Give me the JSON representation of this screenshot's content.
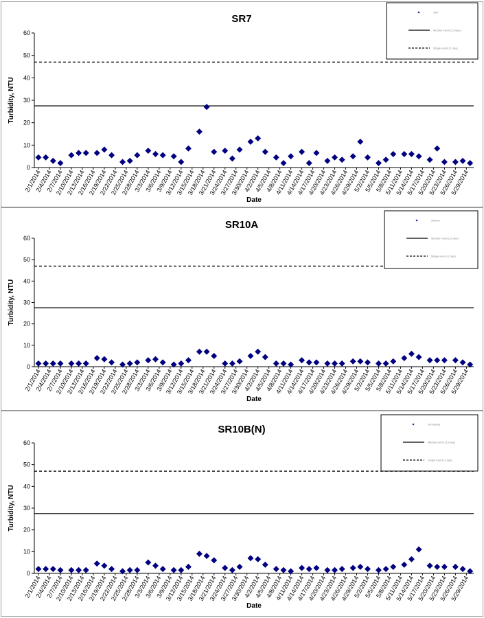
{
  "chart_data": [
    {
      "type": "scatter",
      "title": "SR7",
      "xlabel": "Date",
      "ylabel": "Turbidity, NTU",
      "ylim": [
        0,
        60
      ],
      "y_ticks": [
        0,
        10,
        20,
        30,
        40,
        50,
        60
      ],
      "x_tick_labels": [
        "2/1/2014",
        "2/4/2014",
        "2/7/2014",
        "2/10/2014",
        "2/13/2014",
        "2/16/2014",
        "2/19/2014",
        "2/22/2014",
        "2/25/2014",
        "2/28/2014",
        "3/3/2014",
        "3/6/2014",
        "3/9/2014",
        "3/12/2014",
        "3/15/2014",
        "3/18/2014",
        "3/21/2014",
        "3/24/2014",
        "3/27/2014",
        "3/30/2014",
        "4/2/2014",
        "4/5/2014",
        "4/8/2014",
        "4/11/2014",
        "4/14/2014",
        "4/17/2014",
        "4/20/2014",
        "4/23/2014",
        "4/26/2014",
        "4/29/2014",
        "5/2/2014",
        "5/5/2014",
        "5/8/2014",
        "5/11/2014",
        "5/14/2014",
        "5/17/2014",
        "5/20/2014",
        "5/23/2014",
        "5/26/2014",
        "5/29/2014"
      ],
      "legend_position": "top-right",
      "legend": [
        "SR7",
        "Median event (15 day)",
        "Single event (1 day)"
      ],
      "series": [
        {
          "name": "SR7",
          "marker": "diamond",
          "color": "#000080",
          "x": [
            "2/1/2014",
            "2/3/2014",
            "2/5/2014",
            "2/7/2014",
            "2/10/2014",
            "2/12/2014",
            "2/14/2014",
            "2/17/2014",
            "2/19/2014",
            "2/21/2014",
            "2/24/2014",
            "2/26/2014",
            "2/28/2014",
            "3/3/2014",
            "3/5/2014",
            "3/7/2014",
            "3/10/2014",
            "3/12/2014",
            "3/14/2014",
            "3/17/2014",
            "3/19/2014",
            "3/21/2014",
            "3/24/2014",
            "3/26/2014",
            "3/28/2014",
            "3/31/2014",
            "4/2/2014",
            "4/4/2014",
            "4/7/2014",
            "4/9/2014",
            "4/11/2014",
            "4/14/2014",
            "4/16/2014",
            "4/18/2014",
            "4/21/2014",
            "4/23/2014",
            "4/25/2014",
            "4/28/2014",
            "4/30/2014",
            "5/2/2014",
            "5/5/2014",
            "5/7/2014",
            "5/9/2014",
            "5/12/2014",
            "5/14/2014",
            "5/16/2014",
            "5/19/2014",
            "5/21/2014",
            "5/23/2014",
            "5/26/2014",
            "5/28/2014",
            "5/30/2014"
          ],
          "y": [
            4.5,
            4.5,
            3,
            2,
            5.5,
            6.5,
            6.5,
            6.5,
            8,
            5.5,
            2.5,
            3,
            5.5,
            7.5,
            6,
            5.5,
            5,
            2.5,
            8.5,
            16,
            27,
            7,
            7.5,
            4,
            8,
            11.5,
            13,
            7,
            4.5,
            2,
            5,
            7,
            2,
            6.5,
            3,
            4.5,
            3.5,
            5,
            11.5,
            4.5,
            2,
            3.5,
            6,
            6,
            6,
            5,
            3.5,
            8.5,
            2.5,
            2.5,
            3,
            2
          ]
        }
      ],
      "reference_lines": [
        {
          "name": "Median event (15 day)",
          "y": 27.5,
          "style": "solid"
        },
        {
          "name": "Single event (1 day)",
          "y": 47,
          "style": "dashed"
        }
      ]
    },
    {
      "type": "scatter",
      "title": "SR10A",
      "xlabel": "Date",
      "ylabel": "Turbidity, NTU",
      "ylim": [
        0,
        60
      ],
      "y_ticks": [
        0,
        10,
        20,
        30,
        40,
        50,
        60
      ],
      "x_tick_labels": [
        "2/1/2014",
        "2/4/2014",
        "2/7/2014",
        "2/10/2014",
        "2/13/2014",
        "2/16/2014",
        "2/19/2014",
        "2/22/2014",
        "2/25/2014",
        "2/28/2014",
        "3/3/2014",
        "3/6/2014",
        "3/9/2014",
        "3/12/2014",
        "3/15/2014",
        "3/18/2014",
        "3/21/2014",
        "3/24/2014",
        "3/27/2014",
        "3/30/2014",
        "4/2/2014",
        "4/5/2014",
        "4/8/2014",
        "4/11/2014",
        "4/14/2014",
        "4/17/2014",
        "4/20/2014",
        "4/23/2014",
        "4/26/2014",
        "4/29/2014",
        "5/2/2014",
        "5/5/2014",
        "5/8/2014",
        "5/11/2014",
        "5/14/2014",
        "5/17/2014",
        "5/20/2014",
        "5/23/2014",
        "5/26/2014",
        "5/29/2014"
      ],
      "legend_position": "top-right",
      "legend": [
        "SR10A",
        "Median event (15 day)",
        "Single event (1 day)"
      ],
      "series": [
        {
          "name": "SR10A",
          "marker": "diamond",
          "color": "#000080",
          "x": [
            "2/1/2014",
            "2/3/2014",
            "2/5/2014",
            "2/7/2014",
            "2/10/2014",
            "2/12/2014",
            "2/14/2014",
            "2/17/2014",
            "2/19/2014",
            "2/21/2014",
            "2/24/2014",
            "2/26/2014",
            "2/28/2014",
            "3/3/2014",
            "3/5/2014",
            "3/7/2014",
            "3/10/2014",
            "3/12/2014",
            "3/14/2014",
            "3/17/2014",
            "3/19/2014",
            "3/21/2014",
            "3/24/2014",
            "3/26/2014",
            "3/28/2014",
            "3/31/2014",
            "4/2/2014",
            "4/4/2014",
            "4/7/2014",
            "4/9/2014",
            "4/11/2014",
            "4/14/2014",
            "4/16/2014",
            "4/18/2014",
            "4/21/2014",
            "4/23/2014",
            "4/25/2014",
            "4/28/2014",
            "4/30/2014",
            "5/2/2014",
            "5/5/2014",
            "5/7/2014",
            "5/9/2014",
            "5/12/2014",
            "5/14/2014",
            "5/16/2014",
            "5/19/2014",
            "5/21/2014",
            "5/23/2014",
            "5/26/2014",
            "5/28/2014",
            "5/30/2014"
          ],
          "y": [
            1.5,
            1.5,
            1.5,
            1.5,
            1.5,
            1.5,
            1.5,
            4,
            3.5,
            2,
            1,
            1.5,
            2,
            3,
            3.5,
            2,
            1,
            1.5,
            3,
            7,
            7,
            5,
            1.5,
            1.5,
            2.5,
            5,
            7,
            4.5,
            1.5,
            1.5,
            1,
            3,
            2,
            2,
            1.5,
            1.5,
            1.5,
            2.5,
            2.5,
            2,
            1.5,
            1.5,
            2.5,
            4,
            6,
            4.5,
            3,
            3,
            3,
            3,
            2,
            1
          ]
        }
      ],
      "reference_lines": [
        {
          "name": "Median event (15 day)",
          "y": 27.5,
          "style": "solid"
        },
        {
          "name": "Single event (1 day)",
          "y": 47,
          "style": "dashed"
        }
      ]
    },
    {
      "type": "scatter",
      "title": "SR10B(N)",
      "xlabel": "Date",
      "ylabel": "Turbidity, NTU",
      "ylim": [
        0,
        60
      ],
      "y_ticks": [
        0,
        10,
        20,
        30,
        40,
        50,
        60
      ],
      "x_tick_labels": [
        "2/1/2014",
        "2/4/2014",
        "2/7/2014",
        "2/10/2014",
        "2/13/2014",
        "2/16/2014",
        "2/19/2014",
        "2/22/2014",
        "2/25/2014",
        "2/28/2014",
        "3/3/2014",
        "3/6/2014",
        "3/9/2014",
        "3/12/2014",
        "3/15/2014",
        "3/18/2014",
        "3/21/2014",
        "3/24/2014",
        "3/27/2014",
        "3/30/2014",
        "4/2/2014",
        "4/5/2014",
        "4/8/2014",
        "4/11/2014",
        "4/14/2014",
        "4/17/2014",
        "4/20/2014",
        "4/23/2014",
        "4/26/2014",
        "4/29/2014",
        "5/2/2014",
        "5/5/2014",
        "5/8/2014",
        "5/11/2014",
        "5/14/2014",
        "5/17/2014",
        "5/20/2014",
        "5/23/2014",
        "5/26/2014",
        "5/29/2014"
      ],
      "legend_position": "top-right",
      "legend": [
        "SR10B(N)",
        "Median event (15 day)",
        "Single event (1 day)"
      ],
      "series": [
        {
          "name": "SR10B(N)",
          "marker": "diamond",
          "color": "#000080",
          "x": [
            "2/1/2014",
            "2/3/2014",
            "2/5/2014",
            "2/7/2014",
            "2/10/2014",
            "2/12/2014",
            "2/14/2014",
            "2/17/2014",
            "2/19/2014",
            "2/21/2014",
            "2/24/2014",
            "2/26/2014",
            "2/28/2014",
            "3/3/2014",
            "3/5/2014",
            "3/7/2014",
            "3/10/2014",
            "3/12/2014",
            "3/14/2014",
            "3/17/2014",
            "3/19/2014",
            "3/21/2014",
            "3/24/2014",
            "3/26/2014",
            "3/28/2014",
            "3/31/2014",
            "4/2/2014",
            "4/4/2014",
            "4/7/2014",
            "4/9/2014",
            "4/11/2014",
            "4/14/2014",
            "4/16/2014",
            "4/18/2014",
            "4/21/2014",
            "4/23/2014",
            "4/25/2014",
            "4/28/2014",
            "4/30/2014",
            "5/2/2014",
            "5/5/2014",
            "5/7/2014",
            "5/9/2014",
            "5/12/2014",
            "5/14/2014",
            "5/16/2014",
            "5/19/2014",
            "5/21/2014",
            "5/23/2014",
            "5/26/2014",
            "5/28/2014",
            "5/30/2014"
          ],
          "y": [
            2,
            2,
            2,
            1.5,
            1.5,
            1.5,
            1.5,
            4.5,
            3.5,
            2,
            1,
            1.5,
            1.5,
            5,
            3.5,
            2,
            1.5,
            1.5,
            3,
            9,
            8,
            6,
            2.5,
            1.5,
            3,
            7,
            6.5,
            4,
            2,
            1.5,
            1,
            2.5,
            2,
            2.5,
            1.5,
            1.5,
            2,
            2.5,
            3,
            2,
            1.5,
            2,
            3,
            4,
            6.5,
            11,
            3.5,
            3,
            3,
            3,
            2,
            1
          ]
        }
      ],
      "reference_lines": [
        {
          "name": "Median event (15 day)",
          "y": 27.5,
          "style": "solid"
        },
        {
          "name": "Single event (1 day)",
          "y": 47,
          "style": "dashed"
        }
      ]
    }
  ]
}
